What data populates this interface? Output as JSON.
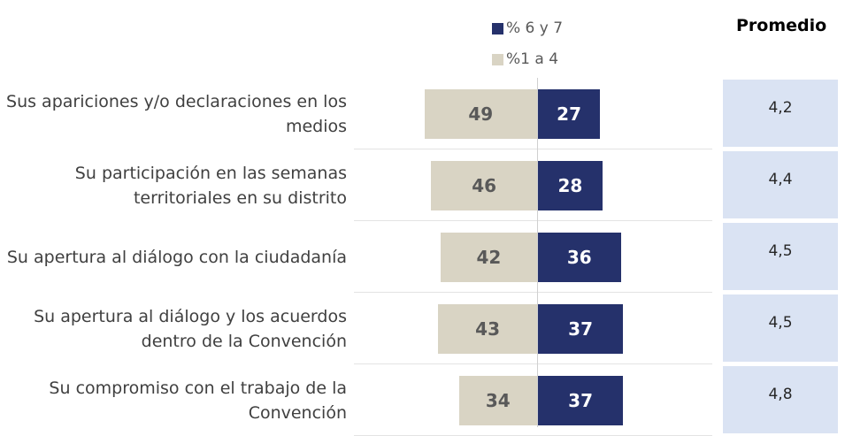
{
  "chart_data": {
    "type": "diverging-bar",
    "categories": [
      "Sus apariciones y/o declaraciones en los medios",
      "Su participación en las semanas territoriales en su distrito",
      "Su apertura al diálogo con la ciudadanía",
      "Su apertura al diálogo y los acuerdos dentro de la Convención",
      "Su compromiso con el trabajo de la Convención"
    ],
    "series": [
      {
        "name": "% 6 y 7",
        "color": "#25316b",
        "values": [
          27,
          28,
          36,
          37,
          37
        ]
      },
      {
        "name": "%1 a 4",
        "color": "#d9d4c4",
        "values": [
          49,
          46,
          42,
          43,
          34
        ]
      }
    ],
    "promedio": {
      "title": "Promedio",
      "values": [
        4.2,
        4.4,
        4.5,
        4.5,
        4.8
      ],
      "value_labels": [
        "4,2",
        "4,4",
        "4,5",
        "4,5",
        "4,8"
      ],
      "color": "#dae3f3"
    }
  }
}
